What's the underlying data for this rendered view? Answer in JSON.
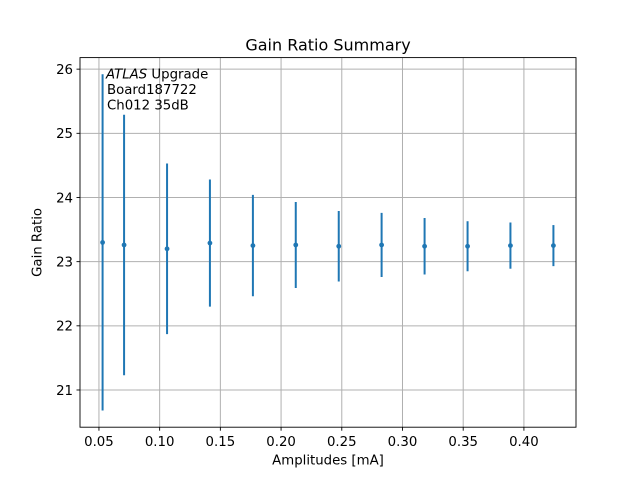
{
  "chart_data": {
    "type": "scatter",
    "subtype": "errorbar",
    "title": "Gain Ratio Summary",
    "xlabel": "Amplitudes [mA]",
    "ylabel": "Gain Ratio",
    "annotation": {
      "line1_italic": "ATLAS",
      "line1_rest": " Upgrade",
      "line2": "Board187722",
      "line3": "Ch012 35dB"
    },
    "series": [
      {
        "name": "gain-ratio-vs-amplitude",
        "x": [
          0.053,
          0.0707,
          0.1061,
          0.1414,
          0.1768,
          0.2121,
          0.2475,
          0.2828,
          0.3182,
          0.3536,
          0.3889,
          0.4243
        ],
        "y": [
          23.3,
          23.26,
          23.2,
          23.29,
          23.25,
          23.26,
          23.24,
          23.26,
          23.24,
          23.24,
          23.25,
          23.25
        ],
        "yerr": [
          2.62,
          2.03,
          1.33,
          0.99,
          0.79,
          0.67,
          0.55,
          0.5,
          0.44,
          0.39,
          0.36,
          0.32
        ]
      }
    ],
    "xlim": [
      0.0344,
      0.4429
    ],
    "ylim": [
      20.42,
      26.18
    ],
    "xticks": [
      {
        "v": 0.05,
        "label": "0.05"
      },
      {
        "v": 0.1,
        "label": "0.10"
      },
      {
        "v": 0.15,
        "label": "0.15"
      },
      {
        "v": 0.2,
        "label": "0.20"
      },
      {
        "v": 0.25,
        "label": "0.25"
      },
      {
        "v": 0.3,
        "label": "0.30"
      },
      {
        "v": 0.35,
        "label": "0.35"
      },
      {
        "v": 0.4,
        "label": "0.40"
      }
    ],
    "yticks": [
      {
        "v": 21,
        "label": "21"
      },
      {
        "v": 22,
        "label": "22"
      },
      {
        "v": 23,
        "label": "23"
      },
      {
        "v": 24,
        "label": "24"
      },
      {
        "v": 25,
        "label": "25"
      },
      {
        "v": 26,
        "label": "26"
      }
    ],
    "grid": true,
    "legend": false,
    "colors": {
      "series": "#1f77b4",
      "grid": "#b0b0b0",
      "spine": "#000000",
      "text": "#000000",
      "background": "#ffffff"
    }
  }
}
